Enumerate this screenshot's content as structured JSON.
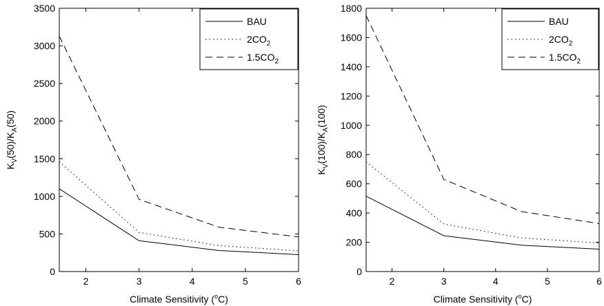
{
  "chart_data": [
    {
      "type": "line",
      "x": [
        1.5,
        3,
        4.5,
        6
      ],
      "xlim": [
        1.5,
        6
      ],
      "ylim": [
        0,
        3500
      ],
      "xticks": [
        "2",
        "3",
        "4",
        "5",
        "6"
      ],
      "yticks": [
        "0",
        "500",
        "1000",
        "1500",
        "2000",
        "2500",
        "3000",
        "3500"
      ],
      "xlabel": {
        "pre": "Climate Sensitivity (",
        "sup": "o",
        "post": "C)"
      },
      "ylabel": {
        "p1": "K",
        "s1": "V",
        "p2": "(50)/K",
        "s2": "A",
        "p3": "(50)"
      },
      "grid": false,
      "legend_position": "top-right",
      "series": [
        {
          "name": "BAU",
          "name_base": "BAU",
          "name_sub": "",
          "style": "solid",
          "values": [
            1100,
            410,
            280,
            225
          ]
        },
        {
          "name": "2CO2",
          "name_base": "2CO",
          "name_sub": "2",
          "style": "dotted",
          "values": [
            1460,
            520,
            345,
            275
          ]
        },
        {
          "name": "1.5CO2",
          "name_base": "1.5CO",
          "name_sub": "2",
          "style": "dashed",
          "values": [
            3130,
            960,
            590,
            460
          ]
        }
      ]
    },
    {
      "type": "line",
      "x": [
        1.5,
        3,
        4.5,
        6
      ],
      "xlim": [
        1.5,
        6
      ],
      "ylim": [
        0,
        1800
      ],
      "xticks": [
        "2",
        "3",
        "4",
        "5",
        "6"
      ],
      "yticks": [
        "0",
        "200",
        "400",
        "600",
        "800",
        "1000",
        "1200",
        "1400",
        "1600",
        "1800"
      ],
      "xlabel": {
        "pre": "Climate Sensitivity (",
        "sup": "o",
        "post": "C)"
      },
      "ylabel": {
        "p1": "K",
        "s1": "V",
        "p2": "(100)/K",
        "s2": "A",
        "p3": "(100)"
      },
      "grid": false,
      "legend_position": "top-right",
      "series": [
        {
          "name": "BAU",
          "name_base": "BAU",
          "name_sub": "",
          "style": "solid",
          "values": [
            515,
            245,
            180,
            153
          ]
        },
        {
          "name": "2CO2",
          "name_base": "2CO",
          "name_sub": "2",
          "style": "dotted",
          "values": [
            750,
            325,
            230,
            195
          ]
        },
        {
          "name": "1.5CO2",
          "name_base": "1.5CO",
          "name_sub": "2",
          "style": "dashed",
          "values": [
            1750,
            630,
            410,
            328
          ]
        }
      ]
    }
  ]
}
